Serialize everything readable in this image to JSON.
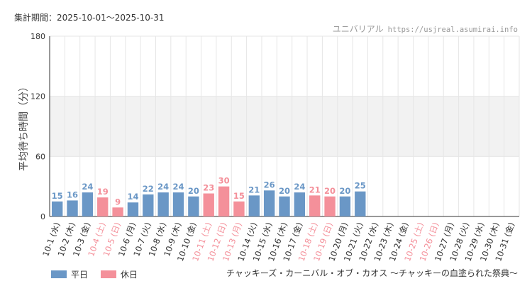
{
  "header": {
    "period": "集計期間：2025-10-01～2025-10-31",
    "brand": "ユニバリアル",
    "site": "https://usjreal.asumirai.info"
  },
  "legend": {
    "weekday": "平日",
    "holiday": "休日"
  },
  "caption": "チャッキーズ・カーニバル・オブ・カオス ～チャッキーの血塗られた祭典～",
  "colors": {
    "weekday": "#6a97c6",
    "holiday": "#f4909a",
    "band": "#f2f2f2",
    "grid": "#e6e6e6",
    "axis": "#333333"
  },
  "chart_data": {
    "type": "bar",
    "ylabel": "平均待ち時間（分）",
    "ylim": [
      0,
      180
    ],
    "yticks": [
      0,
      60,
      120,
      180
    ],
    "categories": [
      "10-1 (水)",
      "10-2 (木)",
      "10-3 (金)",
      "10-4 (土)",
      "10-5 (日)",
      "10-6 (月)",
      "10-7 (火)",
      "10-8 (水)",
      "10-9 (木)",
      "10-10 (金)",
      "10-11 (土)",
      "10-12 (日)",
      "10-13 (月)",
      "10-14 (火)",
      "10-15 (水)",
      "10-16 (木)",
      "10-17 (金)",
      "10-18 (土)",
      "10-19 (日)",
      "10-20 (月)",
      "10-21 (火)",
      "10-22 (水)",
      "10-23 (木)",
      "10-24 (金)",
      "10-25 (土)",
      "10-26 (日)",
      "10-27 (月)",
      "10-28 (火)",
      "10-29 (水)",
      "10-30 (木)",
      "10-31 (金)"
    ],
    "day_type": [
      "weekday",
      "weekday",
      "weekday",
      "holiday",
      "holiday",
      "weekday",
      "weekday",
      "weekday",
      "weekday",
      "weekday",
      "holiday",
      "holiday",
      "holiday",
      "weekday",
      "weekday",
      "weekday",
      "weekday",
      "holiday",
      "holiday",
      "weekday",
      "weekday",
      "weekday",
      "weekday",
      "weekday",
      "holiday",
      "holiday",
      "weekday",
      "weekday",
      "weekday",
      "weekday",
      "weekday"
    ],
    "values": [
      15,
      16,
      24,
      19,
      9,
      14,
      22,
      24,
      24,
      20,
      23,
      30,
      15,
      21,
      26,
      20,
      24,
      21,
      20,
      20,
      25,
      null,
      null,
      null,
      null,
      null,
      null,
      null,
      null,
      null,
      null
    ],
    "series": [
      {
        "name": "平日",
        "key": "weekday"
      },
      {
        "name": "休日",
        "key": "holiday"
      }
    ]
  }
}
